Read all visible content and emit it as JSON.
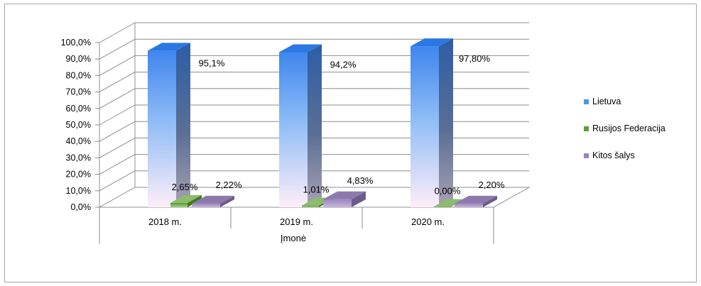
{
  "chart_data": {
    "type": "bar",
    "categories": [
      "2018 m.",
      "2019 m.",
      "2020 m."
    ],
    "xlabel": "Įmonė",
    "ylim": [
      0,
      100
    ],
    "y_ticks": [
      "0,0%",
      "10,0%",
      "20,0%",
      "30,0%",
      "40,0%",
      "50,0%",
      "60,0%",
      "70,0%",
      "80,0%",
      "90,0%",
      "100,0%"
    ],
    "grid": true,
    "legend_position": "right",
    "series": [
      {
        "name": "Lietuva",
        "values": [
          95.1,
          94.2,
          97.8
        ],
        "labels": [
          "95,1%",
          "94,2%",
          "97,80%"
        ],
        "color": "#4f94f0"
      },
      {
        "name": "Rusijos Federacija",
        "values": [
          2.65,
          1.01,
          0.0
        ],
        "labels": [
          "2,65%",
          "1,01%",
          "0,00%"
        ],
        "color": "#5aa034"
      },
      {
        "name": "Kitos šalys",
        "values": [
          2.22,
          4.83,
          2.2
        ],
        "labels": [
          "2,22%",
          "4,83%",
          "2,20%"
        ],
        "color": "#9a84bc"
      }
    ]
  }
}
